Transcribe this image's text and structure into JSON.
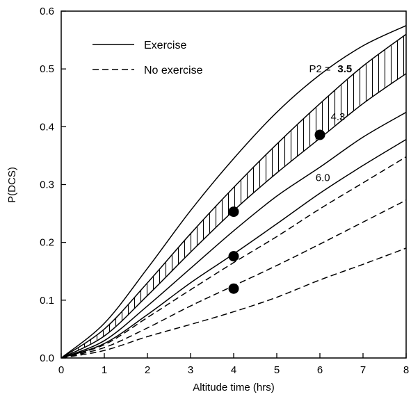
{
  "chart_data": {
    "type": "line",
    "title": "",
    "xlabel": "Altitude time (hrs)",
    "ylabel": "P(DCS)",
    "xlim": [
      0,
      8
    ],
    "ylim": [
      0,
      0.6
    ],
    "xticks": [
      0,
      1,
      2,
      3,
      4,
      5,
      6,
      7,
      8
    ],
    "xtick_labels": [
      "0",
      "1",
      "2",
      "3",
      "4",
      "5",
      "6",
      "7",
      "8"
    ],
    "yticks": [
      0.0,
      0.1,
      0.2,
      0.3,
      0.4,
      0.5,
      0.6
    ],
    "ytick_labels": [
      "0.0",
      "0.1",
      "0.2",
      "0.3",
      "0.4",
      "0.5",
      "0.6"
    ],
    "grid": false,
    "legend": {
      "placement": "top-left",
      "entries": [
        {
          "label": "Exercise",
          "style": "solid"
        },
        {
          "label": "No exercise",
          "style": "dashed"
        }
      ]
    },
    "shaded_band": {
      "between": [
        "Exercise P2=3.5 (inner)",
        "Exercise P2=4.3"
      ],
      "pattern": "vertical-hatch"
    },
    "series": [
      {
        "style": "solid",
        "x": [
          0,
          1,
          2,
          3,
          4,
          5,
          6,
          7,
          8
        ],
        "y": [
          0,
          0.06,
          0.155,
          0.255,
          0.345,
          0.425,
          0.49,
          0.54,
          0.575
        ]
      },
      {
        "style": "solid",
        "x": [
          0,
          1,
          2,
          3,
          4,
          5,
          6,
          7,
          8
        ],
        "y": [
          0,
          0.05,
          0.13,
          0.215,
          0.295,
          0.37,
          0.44,
          0.505,
          0.56
        ]
      },
      {
        "style": "solid",
        "x": [
          0,
          1,
          2,
          3,
          4,
          5,
          6,
          7,
          8
        ],
        "y": [
          0,
          0.038,
          0.108,
          0.183,
          0.255,
          0.32,
          0.38,
          0.44,
          0.492
        ]
      },
      {
        "style": "solid",
        "x": [
          0,
          1,
          2,
          3,
          4,
          5,
          6,
          7,
          8
        ],
        "y": [
          0,
          0.03,
          0.09,
          0.155,
          0.22,
          0.28,
          0.33,
          0.382,
          0.425
        ]
      },
      {
        "style": "solid",
        "x": [
          0,
          1,
          2,
          3,
          4,
          5,
          6,
          7,
          8
        ],
        "y": [
          0,
          0.025,
          0.075,
          0.13,
          0.18,
          0.232,
          0.285,
          0.333,
          0.378
        ]
      },
      {
        "style": "dashed",
        "x": [
          0,
          1,
          2,
          3,
          4,
          5,
          6,
          7,
          8
        ],
        "y": [
          0,
          0.023,
          0.07,
          0.118,
          0.165,
          0.21,
          0.258,
          0.303,
          0.348
        ]
      },
      {
        "style": "dashed",
        "x": [
          0,
          1,
          2,
          3,
          4,
          5,
          6,
          7,
          8
        ],
        "y": [
          0,
          0.018,
          0.052,
          0.09,
          0.125,
          0.16,
          0.197,
          0.235,
          0.273
        ]
      },
      {
        "style": "dashed",
        "x": [
          0,
          1,
          2,
          3,
          4,
          5,
          6,
          7,
          8
        ],
        "y": [
          0,
          0.013,
          0.037,
          0.058,
          0.08,
          0.105,
          0.135,
          0.162,
          0.19
        ]
      }
    ],
    "points": [
      {
        "x": 4,
        "y": 0.253
      },
      {
        "x": 6,
        "y": 0.386
      },
      {
        "x": 4,
        "y": 0.176
      },
      {
        "x": 4,
        "y": 0.12
      }
    ],
    "annotations": [
      {
        "text": "P2 = ",
        "x": 5.75,
        "y": 0.5,
        "bold": false
      },
      {
        "text": "3.5",
        "x": 6.41,
        "y": 0.5,
        "bold": true
      },
      {
        "text": "4.3",
        "x": 6.25,
        "y": 0.417,
        "bold": false
      },
      {
        "text": "6.0",
        "x": 5.9,
        "y": 0.312,
        "bold": false
      }
    ]
  }
}
